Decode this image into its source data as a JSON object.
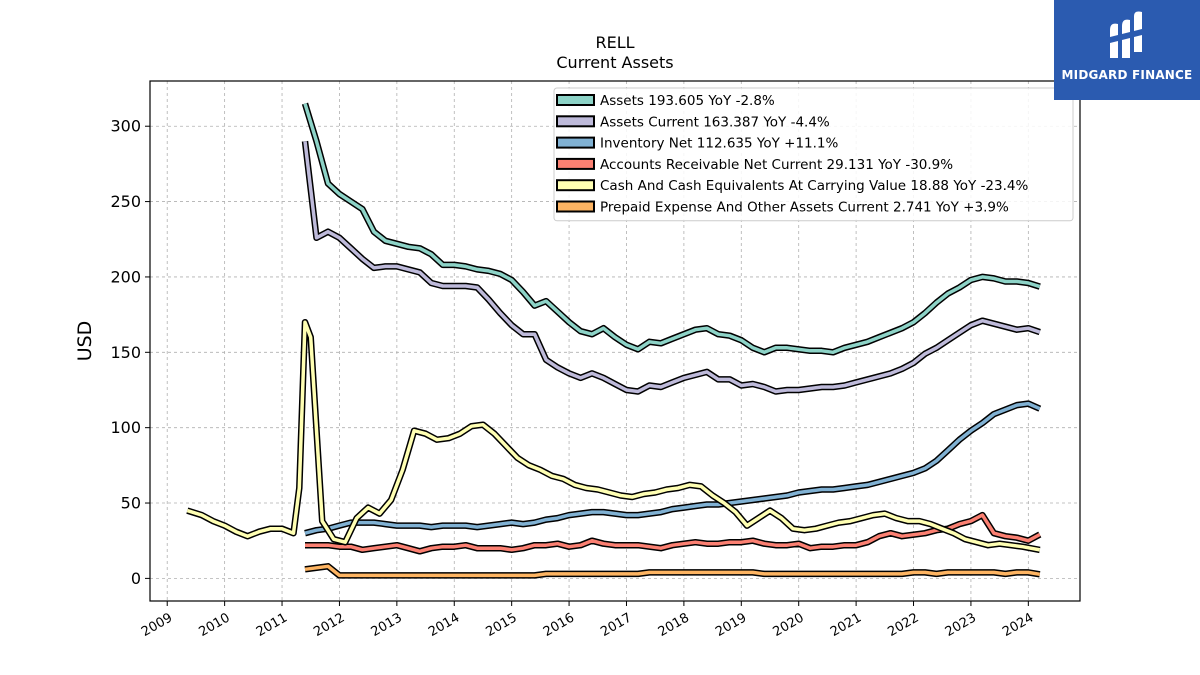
{
  "logo": {
    "text": "MIDGARD FINANCE",
    "icon": "midgard-logo-icon",
    "background": "#2b5bb0"
  },
  "chart_data": {
    "type": "line",
    "title": "RELL",
    "subtitle": "Current  Assets",
    "ylabel": "USD",
    "xlabel": "",
    "xlim": [
      2008.7,
      2024.9
    ],
    "ylim": [
      -15,
      330
    ],
    "yticks": [
      0,
      50,
      100,
      150,
      200,
      250,
      300
    ],
    "xticks": [
      "2009",
      "2010",
      "2011",
      "2012",
      "2013",
      "2014",
      "2015",
      "2016",
      "2017",
      "2018",
      "2019",
      "2020",
      "2021",
      "2022",
      "2023",
      "2024"
    ],
    "grid": true,
    "legend_position": "top-right",
    "series": [
      {
        "name": "Assets  193.605 YoY -2.8%",
        "color": "#8dd3c7",
        "x": [
          2011.4,
          2011.6,
          2011.8,
          2012.0,
          2012.2,
          2012.4,
          2012.6,
          2012.8,
          2013.0,
          2013.2,
          2013.4,
          2013.6,
          2013.8,
          2014.0,
          2014.2,
          2014.4,
          2014.6,
          2014.8,
          2015.0,
          2015.2,
          2015.4,
          2015.6,
          2015.8,
          2016.0,
          2016.2,
          2016.4,
          2016.6,
          2016.8,
          2017.0,
          2017.2,
          2017.4,
          2017.6,
          2017.8,
          2018.0,
          2018.2,
          2018.4,
          2018.6,
          2018.8,
          2019.0,
          2019.2,
          2019.4,
          2019.6,
          2019.8,
          2020.0,
          2020.2,
          2020.4,
          2020.6,
          2020.8,
          2021.0,
          2021.2,
          2021.4,
          2021.6,
          2021.8,
          2022.0,
          2022.2,
          2022.4,
          2022.6,
          2022.8,
          2023.0,
          2023.2,
          2023.4,
          2023.6,
          2023.8,
          2024.0,
          2024.2
        ],
        "y": [
          315,
          290,
          262,
          255,
          250,
          245,
          230,
          224,
          222,
          220,
          219,
          215,
          208,
          208,
          207,
          205,
          204,
          202,
          198,
          190,
          181,
          184,
          177,
          170,
          164,
          162,
          166,
          160,
          155,
          152,
          157,
          156,
          159,
          162,
          165,
          166,
          162,
          161,
          158,
          153,
          150,
          153,
          153,
          152,
          151,
          151,
          150,
          153,
          155,
          157,
          160,
          163,
          166,
          170,
          176,
          183,
          189,
          193,
          198,
          200,
          199,
          197,
          197,
          196,
          193.6
        ]
      },
      {
        "name": "Assets Current  163.387 YoY -4.4%",
        "color": "#bebada",
        "x": [
          2011.4,
          2011.6,
          2011.8,
          2012.0,
          2012.2,
          2012.4,
          2012.6,
          2012.8,
          2013.0,
          2013.2,
          2013.4,
          2013.6,
          2013.8,
          2014.0,
          2014.2,
          2014.4,
          2014.6,
          2014.8,
          2015.0,
          2015.2,
          2015.4,
          2015.6,
          2015.8,
          2016.0,
          2016.2,
          2016.4,
          2016.6,
          2016.8,
          2017.0,
          2017.2,
          2017.4,
          2017.6,
          2017.8,
          2018.0,
          2018.2,
          2018.4,
          2018.6,
          2018.8,
          2019.0,
          2019.2,
          2019.4,
          2019.6,
          2019.8,
          2020.0,
          2020.2,
          2020.4,
          2020.6,
          2020.8,
          2021.0,
          2021.2,
          2021.4,
          2021.6,
          2021.8,
          2022.0,
          2022.2,
          2022.4,
          2022.6,
          2022.8,
          2023.0,
          2023.2,
          2023.4,
          2023.6,
          2023.8,
          2024.0,
          2024.2
        ],
        "y": [
          290,
          226,
          230,
          226,
          219,
          212,
          206,
          207,
          207,
          205,
          203,
          196,
          194,
          194,
          194,
          193,
          185,
          176,
          168,
          162,
          162,
          145,
          140,
          136,
          133,
          136,
          133,
          129,
          125,
          124,
          128,
          127,
          130,
          133,
          135,
          137,
          132,
          132,
          128,
          129,
          127,
          124,
          125,
          125,
          126,
          127,
          127,
          128,
          130,
          132,
          134,
          136,
          139,
          143,
          149,
          153,
          158,
          163,
          168,
          171,
          169,
          167,
          165,
          166,
          163.4
        ]
      },
      {
        "name": "Inventory Net  112.635 YoY +11.1%",
        "color": "#80b1d3",
        "x": [
          2011.4,
          2011.6,
          2011.8,
          2012.0,
          2012.2,
          2012.4,
          2012.6,
          2012.8,
          2013.0,
          2013.2,
          2013.4,
          2013.6,
          2013.8,
          2014.0,
          2014.2,
          2014.4,
          2014.6,
          2014.8,
          2015.0,
          2015.2,
          2015.4,
          2015.6,
          2015.8,
          2016.0,
          2016.2,
          2016.4,
          2016.6,
          2016.8,
          2017.0,
          2017.2,
          2017.4,
          2017.6,
          2017.8,
          2018.0,
          2018.2,
          2018.4,
          2018.6,
          2018.8,
          2019.0,
          2019.2,
          2019.4,
          2019.6,
          2019.8,
          2020.0,
          2020.2,
          2020.4,
          2020.6,
          2020.8,
          2021.0,
          2021.2,
          2021.4,
          2021.6,
          2021.8,
          2022.0,
          2022.2,
          2022.4,
          2022.6,
          2022.8,
          2023.0,
          2023.2,
          2023.4,
          2023.6,
          2023.8,
          2024.0,
          2024.2
        ],
        "y": [
          30,
          32,
          33,
          35,
          37,
          37,
          37,
          36,
          35,
          35,
          35,
          34,
          35,
          35,
          35,
          34,
          35,
          36,
          37,
          36,
          37,
          39,
          40,
          42,
          43,
          44,
          44,
          43,
          42,
          42,
          43,
          44,
          46,
          47,
          48,
          49,
          49,
          50,
          51,
          52,
          53,
          54,
          55,
          57,
          58,
          59,
          59,
          60,
          61,
          62,
          64,
          66,
          68,
          70,
          73,
          78,
          85,
          92,
          98,
          103,
          109,
          112,
          115,
          116,
          112.6
        ]
      },
      {
        "name": "Accounts Receivable Net Current  29.131 YoY -30.9%",
        "color": "#fb8072",
        "x": [
          2011.4,
          2011.6,
          2011.8,
          2012.0,
          2012.2,
          2012.4,
          2012.6,
          2012.8,
          2013.0,
          2013.2,
          2013.4,
          2013.6,
          2013.8,
          2014.0,
          2014.2,
          2014.4,
          2014.6,
          2014.8,
          2015.0,
          2015.2,
          2015.4,
          2015.6,
          2015.8,
          2016.0,
          2016.2,
          2016.4,
          2016.6,
          2016.8,
          2017.0,
          2017.2,
          2017.4,
          2017.6,
          2017.8,
          2018.0,
          2018.2,
          2018.4,
          2018.6,
          2018.8,
          2019.0,
          2019.2,
          2019.4,
          2019.6,
          2019.8,
          2020.0,
          2020.2,
          2020.4,
          2020.6,
          2020.8,
          2021.0,
          2021.2,
          2021.4,
          2021.6,
          2021.8,
          2022.0,
          2022.2,
          2022.4,
          2022.6,
          2022.8,
          2023.0,
          2023.2,
          2023.4,
          2023.6,
          2023.8,
          2024.0,
          2024.2
        ],
        "y": [
          22,
          22,
          22,
          21,
          21,
          19,
          20,
          21,
          22,
          20,
          18,
          20,
          21,
          21,
          22,
          20,
          20,
          20,
          19,
          20,
          22,
          22,
          23,
          21,
          22,
          25,
          23,
          22,
          22,
          22,
          21,
          20,
          22,
          23,
          24,
          23,
          23,
          24,
          24,
          25,
          23,
          22,
          22,
          23,
          20,
          21,
          21,
          22,
          22,
          24,
          28,
          30,
          28,
          29,
          30,
          32,
          33,
          36,
          38,
          42,
          30,
          28,
          27,
          25,
          29.1
        ]
      },
      {
        "name": "Cash And Cash Equivalents At Carrying Value  18.88 YoY -23.4%",
        "color": "#ffffb3",
        "x": [
          2009.35,
          2009.6,
          2009.8,
          2010.0,
          2010.2,
          2010.4,
          2010.6,
          2010.8,
          2011.0,
          2011.2,
          2011.3,
          2011.4,
          2011.5,
          2011.7,
          2011.9,
          2012.1,
          2012.3,
          2012.5,
          2012.7,
          2012.9,
          2013.1,
          2013.3,
          2013.5,
          2013.7,
          2013.9,
          2014.1,
          2014.3,
          2014.5,
          2014.7,
          2014.9,
          2015.1,
          2015.3,
          2015.5,
          2015.7,
          2015.9,
          2016.1,
          2016.3,
          2016.5,
          2016.7,
          2016.9,
          2017.1,
          2017.3,
          2017.5,
          2017.7,
          2017.9,
          2018.1,
          2018.3,
          2018.5,
          2018.7,
          2018.9,
          2019.1,
          2019.3,
          2019.5,
          2019.7,
          2019.9,
          2020.1,
          2020.3,
          2020.5,
          2020.7,
          2020.9,
          2021.1,
          2021.3,
          2021.5,
          2021.7,
          2021.9,
          2022.1,
          2022.3,
          2022.5,
          2022.7,
          2022.9,
          2023.1,
          2023.3,
          2023.5,
          2023.7,
          2023.9,
          2024.2
        ],
        "y": [
          45,
          42,
          38,
          35,
          31,
          28,
          31,
          33,
          33,
          30,
          60,
          170,
          160,
          38,
          26,
          24,
          40,
          47,
          43,
          52,
          72,
          98,
          96,
          92,
          93,
          96,
          101,
          102,
          96,
          88,
          80,
          75,
          72,
          68,
          66,
          62,
          60,
          59,
          57,
          55,
          54,
          56,
          57,
          59,
          60,
          62,
          61,
          55,
          50,
          44,
          35,
          40,
          45,
          40,
          33,
          32,
          33,
          35,
          37,
          38,
          40,
          42,
          43,
          40,
          38,
          38,
          36,
          33,
          30,
          26,
          24,
          22,
          23,
          22,
          21,
          18.9
        ]
      },
      {
        "name": "Prepaid Expense And Other Assets Current  2.741 YoY +3.9%",
        "color": "#fdb462",
        "x": [
          2011.4,
          2011.6,
          2011.8,
          2012.0,
          2012.2,
          2012.4,
          2012.6,
          2012.8,
          2013.0,
          2013.2,
          2013.4,
          2013.6,
          2013.8,
          2014.0,
          2014.2,
          2014.4,
          2014.6,
          2014.8,
          2015.0,
          2015.2,
          2015.4,
          2015.6,
          2015.8,
          2016.0,
          2016.2,
          2016.4,
          2016.6,
          2016.8,
          2017.0,
          2017.2,
          2017.4,
          2017.6,
          2017.8,
          2018.0,
          2018.2,
          2018.4,
          2018.6,
          2018.8,
          2019.0,
          2019.2,
          2019.4,
          2019.6,
          2019.8,
          2020.0,
          2020.2,
          2020.4,
          2020.6,
          2020.8,
          2021.0,
          2021.2,
          2021.4,
          2021.6,
          2021.8,
          2022.0,
          2022.2,
          2022.4,
          2022.6,
          2022.8,
          2023.0,
          2023.2,
          2023.4,
          2023.6,
          2023.8,
          2024.0,
          2024.2
        ],
        "y": [
          6,
          7,
          8,
          2,
          2,
          2,
          2,
          2,
          2,
          2,
          2,
          2,
          2,
          2,
          2,
          2,
          2,
          2,
          2,
          2,
          2,
          3,
          3,
          3,
          3,
          3,
          3,
          3,
          3,
          3,
          4,
          4,
          4,
          4,
          4,
          4,
          4,
          4,
          4,
          4,
          3,
          3,
          3,
          3,
          3,
          3,
          3,
          3,
          3,
          3,
          3,
          3,
          3,
          4,
          4,
          3,
          4,
          4,
          4,
          4,
          4,
          3,
          4,
          4,
          2.7
        ]
      }
    ]
  }
}
